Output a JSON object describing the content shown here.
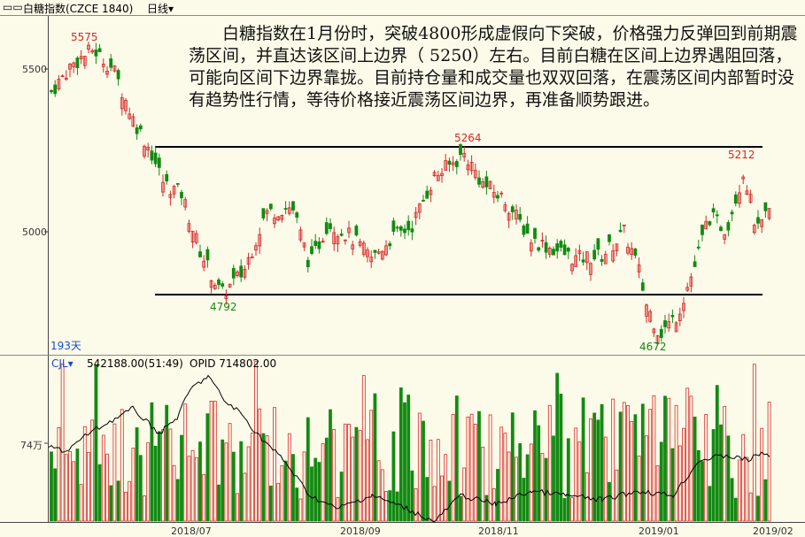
{
  "window": {
    "menu_glyph": "▭▭",
    "instrument": "白糖指数(CZCE 1840)",
    "period": "日线",
    "dropdown_glyph": "▾"
  },
  "annotation": "白糖指数在1月份时，突破4800形成虚假向下突破，价格强力反弹回到前期震荡区间，并直达该区间上边界（ 5250）左右。目前白糖在区间上边界遇阻回落，可能向区间下边界靠拢。目前持仓量和成交量也双双回落，在震荡区间内部暂时没有趋势性行情，等待价格接近震荡区间边界，再准备顺势跟进。",
  "price_labels": {
    "p5575": "5575",
    "p5264": "5264",
    "p5212": "5212",
    "p4792": "4792",
    "p4672": "4672",
    "days": "193天"
  },
  "y_axis": {
    "t5500": "5500",
    "t5000": "5000"
  },
  "volume_panel": {
    "indicator": "CJL",
    "dropdown_glyph": "▾",
    "volume_text": "542188.00(51:49)",
    "opid_text": "OPID 714802.00",
    "y_tick": "74万"
  },
  "x_axis": [
    "2018/07",
    "2018/09",
    "2018/11",
    "2019/01",
    "2019/02"
  ],
  "colors": {
    "up": "#d62828",
    "down": "#138a13",
    "annotation": "#111111",
    "bg": "#fcfbe9"
  },
  "chart_data": {
    "type": "candlestick",
    "price_range": [
      4640,
      5640
    ],
    "support_level": 4810,
    "resistance_level": 5265,
    "marked_highs": [
      5575,
      5264,
      5212
    ],
    "marked_lows": [
      4792,
      4672
    ]
  }
}
